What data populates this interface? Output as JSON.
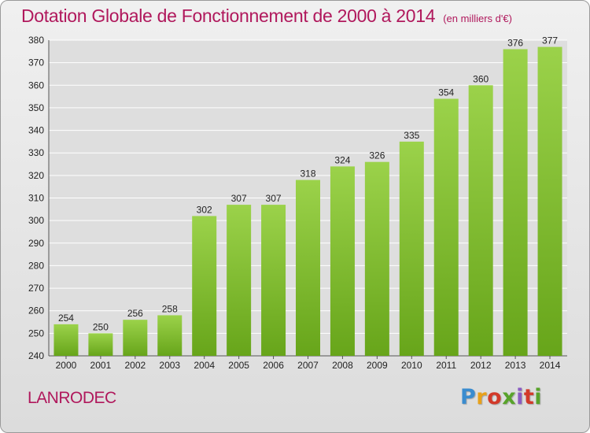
{
  "header": {
    "title": "Dotation Globale de Fonctionnement de 2000 à 2014",
    "unit": "(en milliers d'€)"
  },
  "footer": {
    "commune": "LANRODEC",
    "logo": "Proxiti"
  },
  "colors": {
    "bar_light": "#9bd24a",
    "bar_dark": "#67a51a",
    "title": "#b0185c",
    "grid": "#ffffff"
  },
  "chart_data": {
    "type": "bar",
    "title": "Dotation Globale de Fonctionnement de 2000 à 2014",
    "subtitle": "(en milliers d'€)",
    "xlabel": "",
    "ylabel": "",
    "categories": [
      "2000",
      "2001",
      "2002",
      "2003",
      "2004",
      "2005",
      "2006",
      "2007",
      "2008",
      "2009",
      "2010",
      "2011",
      "2012",
      "2013",
      "2014"
    ],
    "values": [
      254,
      250,
      256,
      258,
      302,
      307,
      307,
      318,
      324,
      326,
      335,
      354,
      360,
      376,
      377
    ],
    "ylim": [
      240,
      380
    ],
    "yticks": [
      240,
      250,
      260,
      270,
      280,
      290,
      300,
      310,
      320,
      330,
      340,
      350,
      360,
      370,
      380
    ],
    "grid": true,
    "legend": "none"
  }
}
